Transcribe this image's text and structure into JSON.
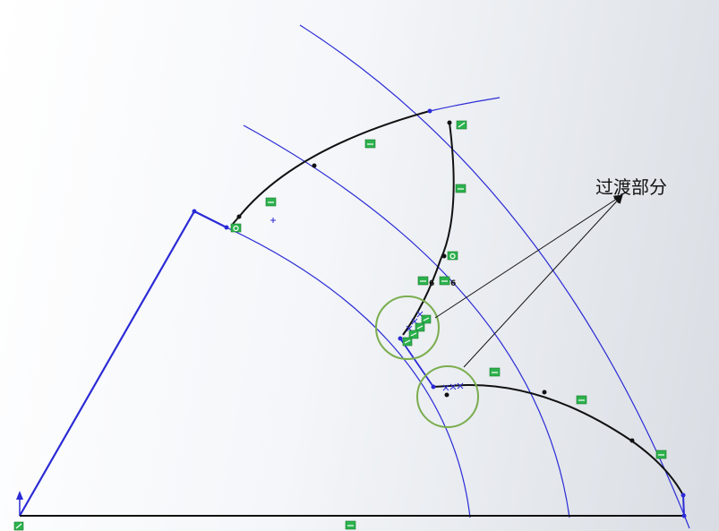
{
  "annotation": {
    "label": "过渡部分"
  },
  "colors": {
    "construction": "#2b2bd6",
    "profile": "#111111",
    "relation": "#2bb24c",
    "callout": "#7aad4e"
  },
  "relation_labels": [
    "6",
    "6"
  ]
}
